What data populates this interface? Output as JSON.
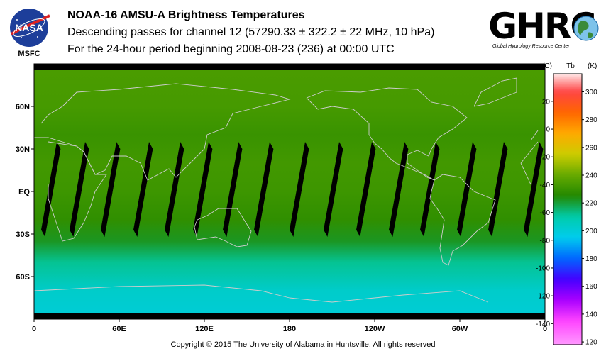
{
  "header": {
    "nasa_logo_text": "NASA",
    "nasa_sub": "MSFC",
    "title": "NOAA-16 AMSU-A Brightness Temperatures",
    "subtitle": "Descending passes for channel 12 (57290.33 ± 322.2 ± 22 MHz, 10 hPa)",
    "period": "For the 24-hour period beginning 2008-08-23 (236) at 00:00 UTC",
    "ghrc_logo_text": "GHRC",
    "ghrc_sub": "Global Hydrology Resource Center"
  },
  "chart_data": {
    "type": "heatmap",
    "title": "NOAA-16 AMSU-A Brightness Temperatures",
    "x_ticks": [
      "0",
      "60E",
      "120E",
      "180",
      "120W",
      "60W",
      "0"
    ],
    "x_tick_lon": [
      0,
      60,
      120,
      180,
      240,
      300,
      360
    ],
    "y_ticks": [
      "60N",
      "30N",
      "EQ",
      "30S",
      "60S"
    ],
    "y_tick_lat": [
      60,
      30,
      0,
      -30,
      -60
    ],
    "xlim": [
      0,
      360
    ],
    "ylim": [
      -90,
      90
    ],
    "colorbar": {
      "label_c": "(C)",
      "label_tb": "Tb",
      "label_k": "(K)",
      "c_ticks": [
        "20",
        "0",
        "-20",
        "-40",
        "-60",
        "-80",
        "-100",
        "-120",
        "-140"
      ],
      "c_values": [
        20,
        0,
        -20,
        -40,
        -60,
        -80,
        -100,
        -120,
        -140
      ],
      "k_ticks": [
        "300",
        "280",
        "260",
        "240",
        "220",
        "200",
        "180",
        "160",
        "140",
        "120"
      ],
      "k_values": [
        300,
        280,
        260,
        240,
        220,
        200,
        180,
        160,
        140,
        120
      ],
      "k_range": [
        118,
        313
      ],
      "colors": [
        {
          "k": 313,
          "color": "#ffe8e8"
        },
        {
          "k": 300,
          "color": "#ff4444"
        },
        {
          "k": 285,
          "color": "#ff6600"
        },
        {
          "k": 270,
          "color": "#ffaa00"
        },
        {
          "k": 255,
          "color": "#cccc00"
        },
        {
          "k": 240,
          "color": "#66aa00"
        },
        {
          "k": 225,
          "color": "#228800"
        },
        {
          "k": 210,
          "color": "#00ccaa"
        },
        {
          "k": 195,
          "color": "#00ccee"
        },
        {
          "k": 180,
          "color": "#0066ff"
        },
        {
          "k": 165,
          "color": "#4400ff"
        },
        {
          "k": 150,
          "color": "#aa00ff"
        },
        {
          "k": 135,
          "color": "#ff44ff"
        },
        {
          "k": 118,
          "color": "#ff99ff"
        }
      ]
    },
    "lat_profile": [
      {
        "lat": 90,
        "tb": 234
      },
      {
        "lat": 60,
        "tb": 233
      },
      {
        "lat": 40,
        "tb": 230
      },
      {
        "lat": 20,
        "tb": 232
      },
      {
        "lat": 0,
        "tb": 231
      },
      {
        "lat": -20,
        "tb": 228
      },
      {
        "lat": -35,
        "tb": 222
      },
      {
        "lat": -50,
        "tb": 212
      },
      {
        "lat": -70,
        "tb": 203
      },
      {
        "lat": -90,
        "tb": 200
      }
    ],
    "swath_gaps_lon": [
      5,
      25,
      47,
      70,
      92,
      112,
      133,
      155,
      180,
      204,
      227,
      250,
      272,
      298,
      320,
      345
    ],
    "no_data_colors": {
      "gap": "#000000",
      "coast": "#cccccc"
    }
  },
  "footer": {
    "copyright": "Copyright © 2015 The University of Alabama in Huntsville.  All rights reserved"
  }
}
